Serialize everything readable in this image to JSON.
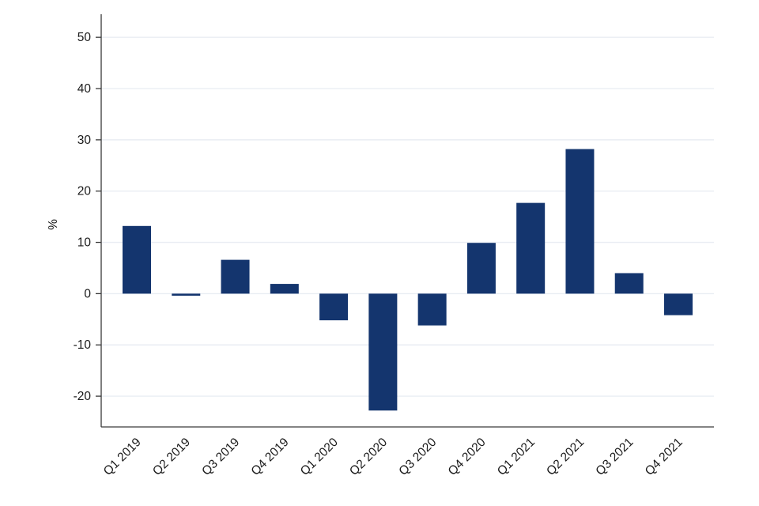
{
  "chart_data": {
    "type": "bar",
    "title": "",
    "xlabel": "",
    "ylabel": "%",
    "categories": [
      "Q1 2019",
      "Q2 2019",
      "Q3 2019",
      "Q4 2019",
      "Q1 2020",
      "Q2 2020",
      "Q3 2020",
      "Q4 2020",
      "Q1 2021",
      "Q2 2021",
      "Q3 2021",
      "Q4 2021"
    ],
    "values": [
      13.2,
      -0.4,
      6.6,
      1.9,
      -5.2,
      -22.8,
      -6.2,
      9.9,
      17.7,
      28.2,
      4.0,
      -4.2
    ],
    "yticks": [
      50,
      40,
      30,
      20,
      10,
      0,
      -10,
      -20
    ],
    "ylim": [
      -26,
      54.5
    ],
    "grid": true,
    "legend": false,
    "bar_color": "#14356e",
    "grid_color": "#e9edf3",
    "axis_color": "#3a3a3a",
    "text_color": "#1a1a1a",
    "background": "#ffffff"
  }
}
